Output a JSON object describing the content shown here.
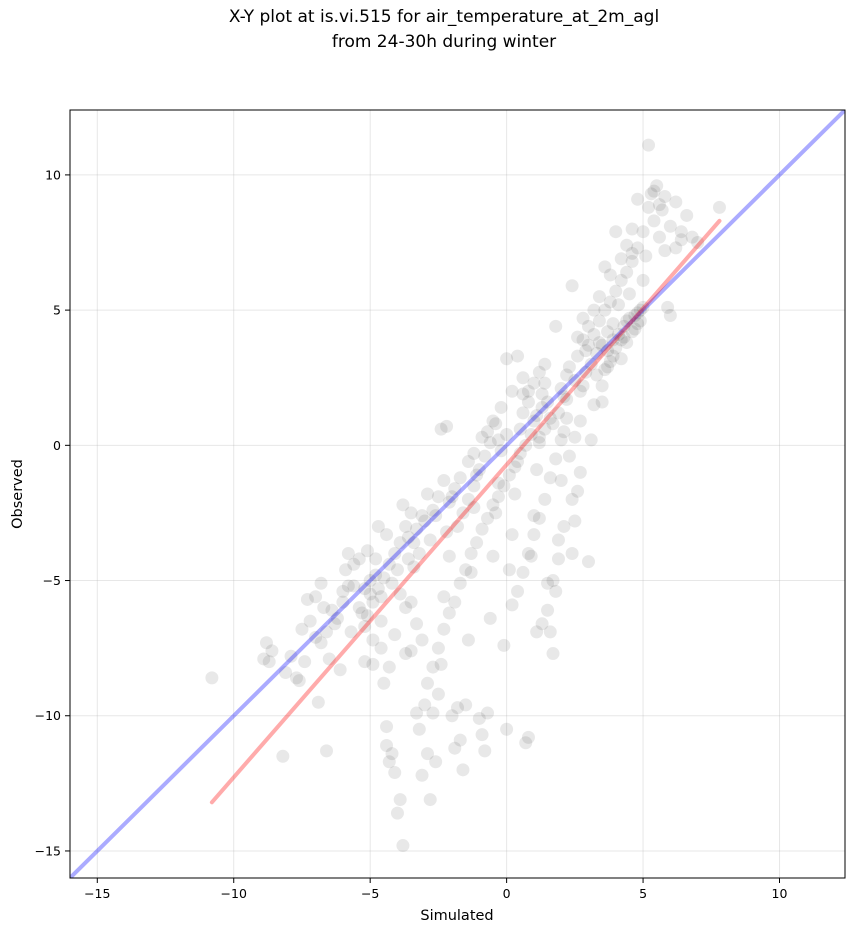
{
  "chart_data": {
    "type": "scatter",
    "title_line1": "X-Y plot at is.vi.515 for air_temperature_at_2m_agl",
    "title_line2": "from 24-30h during winter",
    "xlabel": "Simulated",
    "ylabel": "Observed",
    "xlim": [
      -16.0,
      12.4
    ],
    "ylim": [
      -16.0,
      12.4
    ],
    "xticks": [
      -15,
      -10,
      -5,
      0,
      5,
      10
    ],
    "yticks": [
      -15,
      -10,
      -5,
      0,
      5,
      10
    ],
    "xtick_labels": [
      "−15",
      "−10",
      "−5",
      "0",
      "5",
      "10"
    ],
    "ytick_labels": [
      "−15",
      "−10",
      "−5",
      "0",
      "5",
      "10"
    ],
    "grid": true,
    "point_color": "#000000",
    "point_alpha": 0.09,
    "reference_line": {
      "style": "1:1 identity line",
      "color": "#0000ff",
      "alpha": 0.33
    },
    "fit_line": {
      "color": "#ff0000",
      "alpha": 0.33,
      "x": [
        -10.8,
        7.8
      ],
      "y": [
        -13.2,
        8.3
      ]
    },
    "points": [
      [
        -10.8,
        -8.6
      ],
      [
        -8.9,
        -7.9
      ],
      [
        -8.7,
        -8.0
      ],
      [
        -8.8,
        -7.3
      ],
      [
        -8.6,
        -7.6
      ],
      [
        -8.2,
        -11.5
      ],
      [
        -7.9,
        -7.8
      ],
      [
        -7.6,
        -8.7
      ],
      [
        -7.4,
        -8.0
      ],
      [
        -7.2,
        -6.5
      ],
      [
        -7.0,
        -7.1
      ],
      [
        -6.9,
        -9.5
      ],
      [
        -6.8,
        -5.1
      ],
      [
        -6.6,
        -11.3
      ],
      [
        -6.7,
        -6.0
      ],
      [
        -6.5,
        -7.9
      ],
      [
        -6.3,
        -6.6
      ],
      [
        -6.1,
        -8.3
      ],
      [
        -6.0,
        -5.8
      ],
      [
        -5.9,
        -4.6
      ],
      [
        -5.8,
        -4.0
      ],
      [
        -5.7,
        -6.9
      ],
      [
        -5.6,
        -5.2
      ],
      [
        -5.4,
        -4.2
      ],
      [
        -5.3,
        -6.2
      ],
      [
        -5.2,
        -8.0
      ],
      [
        -5.1,
        -3.9
      ],
      [
        -5.0,
        -5.5
      ],
      [
        -4.9,
        -7.2
      ],
      [
        -4.8,
        -4.8
      ],
      [
        -4.7,
        -3.0
      ],
      [
        -4.6,
        -6.5
      ],
      [
        -4.5,
        -8.8
      ],
      [
        -4.4,
        -10.4
      ],
      [
        -4.4,
        -11.1
      ],
      [
        -4.3,
        -11.7
      ],
      [
        -4.2,
        -11.4
      ],
      [
        -4.1,
        -12.1
      ],
      [
        -4.0,
        -13.6
      ],
      [
        -3.9,
        -13.1
      ],
      [
        -3.8,
        -14.8
      ],
      [
        -3.7,
        -7.7
      ],
      [
        -3.6,
        -3.4
      ],
      [
        -3.5,
        -5.8
      ],
      [
        -3.4,
        -4.5
      ],
      [
        -3.3,
        -9.9
      ],
      [
        -3.2,
        -10.5
      ],
      [
        -3.1,
        -12.2
      ],
      [
        -3.0,
        -9.6
      ],
      [
        -2.9,
        -11.4
      ],
      [
        -2.8,
        -13.1
      ],
      [
        -2.7,
        -9.9
      ],
      [
        -2.6,
        -11.7
      ],
      [
        -2.5,
        -9.2
      ],
      [
        -2.4,
        -8.1
      ],
      [
        -2.3,
        -5.6
      ],
      [
        -2.2,
        -3.2
      ],
      [
        -2.1,
        -4.1
      ],
      [
        -2.0,
        -10.0
      ],
      [
        -1.9,
        -11.2
      ],
      [
        -1.8,
        -9.7
      ],
      [
        -1.7,
        -10.9
      ],
      [
        -1.6,
        -12.0
      ],
      [
        -1.5,
        -9.6
      ],
      [
        -1.4,
        -7.2
      ],
      [
        -1.3,
        -4.7
      ],
      [
        -1.2,
        -2.3
      ],
      [
        -1.1,
        -1.1
      ],
      [
        -1.0,
        -10.1
      ],
      [
        -0.9,
        -10.7
      ],
      [
        -0.8,
        -11.3
      ],
      [
        -0.7,
        -9.9
      ],
      [
        -0.6,
        -6.4
      ],
      [
        -0.5,
        -4.1
      ],
      [
        -0.4,
        -2.5
      ],
      [
        -0.3,
        -1.4
      ],
      [
        -0.2,
        -0.2
      ],
      [
        -0.1,
        -7.4
      ],
      [
        0.0,
        -10.5
      ],
      [
        0.1,
        -4.6
      ],
      [
        0.2,
        -3.3
      ],
      [
        0.3,
        -1.8
      ],
      [
        0.4,
        -0.6
      ],
      [
        0.5,
        0.6
      ],
      [
        0.6,
        1.2
      ],
      [
        0.7,
        -11.0
      ],
      [
        0.8,
        -10.8
      ],
      [
        0.9,
        -4.1
      ],
      [
        1.0,
        -2.6
      ],
      [
        1.1,
        -0.9
      ],
      [
        1.2,
        0.3
      ],
      [
        1.3,
        1.4
      ],
      [
        1.4,
        2.3
      ],
      [
        1.5,
        -5.1
      ],
      [
        1.6,
        -6.9
      ],
      [
        1.7,
        -7.7
      ],
      [
        1.8,
        -5.4
      ],
      [
        1.9,
        -3.5
      ],
      [
        2.0,
        -1.3
      ],
      [
        2.1,
        0.5
      ],
      [
        2.2,
        1.7
      ],
      [
        2.3,
        2.9
      ],
      [
        2.4,
        -4.0
      ],
      [
        2.5,
        -2.8
      ],
      [
        2.6,
        -1.7
      ],
      [
        2.7,
        0.9
      ],
      [
        2.8,
        2.2
      ],
      [
        2.9,
        3.5
      ],
      [
        3.0,
        -4.3
      ],
      [
        3.1,
        0.2
      ],
      [
        3.2,
        1.5
      ],
      [
        3.3,
        2.6
      ],
      [
        3.4,
        3.8
      ],
      [
        3.5,
        1.6
      ],
      [
        3.6,
        2.8
      ],
      [
        3.7,
        4.2
      ],
      [
        3.8,
        3.1
      ],
      [
        3.9,
        4.5
      ],
      [
        4.0,
        3.6
      ],
      [
        4.1,
        5.2
      ],
      [
        4.2,
        3.9
      ],
      [
        4.3,
        4.0
      ],
      [
        4.4,
        4.6
      ],
      [
        4.5,
        5.6
      ],
      [
        4.6,
        6.8
      ],
      [
        4.7,
        4.3
      ],
      [
        4.8,
        4.9
      ],
      [
        4.9,
        5.0
      ],
      [
        5.0,
        6.1
      ],
      [
        5.1,
        7.0
      ],
      [
        5.2,
        11.1
      ],
      [
        5.3,
        9.3
      ],
      [
        5.4,
        8.3
      ],
      [
        5.5,
        9.6
      ],
      [
        5.6,
        7.7
      ],
      [
        5.7,
        8.7
      ],
      [
        5.8,
        7.2
      ],
      [
        5.9,
        5.1
      ],
      [
        6.0,
        4.8
      ],
      [
        6.2,
        9.0
      ],
      [
        6.4,
        7.6
      ],
      [
        6.6,
        8.5
      ],
      [
        6.8,
        7.7
      ],
      [
        7.0,
        7.5
      ],
      [
        7.8,
        8.8
      ],
      [
        4.8,
        9.1
      ],
      [
        4.6,
        8.0
      ],
      [
        4.4,
        7.4
      ],
      [
        4.2,
        6.9
      ],
      [
        4.0,
        7.9
      ],
      [
        3.8,
        6.3
      ],
      [
        3.6,
        6.6
      ],
      [
        3.4,
        5.5
      ],
      [
        3.2,
        5.0
      ],
      [
        3.0,
        4.4
      ],
      [
        2.8,
        3.9
      ],
      [
        2.6,
        3.3
      ],
      [
        2.4,
        5.9
      ],
      [
        2.2,
        2.6
      ],
      [
        2.0,
        2.1
      ],
      [
        1.8,
        4.4
      ],
      [
        1.6,
        1.0
      ],
      [
        1.4,
        0.6
      ],
      [
        1.2,
        0.1
      ],
      [
        1.0,
        0.9
      ],
      [
        0.8,
        1.6
      ],
      [
        0.6,
        2.5
      ],
      [
        0.4,
        3.3
      ],
      [
        0.2,
        2.0
      ],
      [
        0.0,
        3.2
      ],
      [
        -0.2,
        1.4
      ],
      [
        -0.4,
        0.8
      ],
      [
        -0.6,
        0.1
      ],
      [
        -0.8,
        -0.4
      ],
      [
        -1.0,
        -0.9
      ],
      [
        -1.2,
        -1.5
      ],
      [
        -1.4,
        -2.0
      ],
      [
        -1.6,
        -2.5
      ],
      [
        -1.8,
        -3.0
      ],
      [
        -2.0,
        -1.9
      ],
      [
        -2.2,
        0.7
      ],
      [
        -2.4,
        0.6
      ],
      [
        -2.6,
        -2.6
      ],
      [
        -2.8,
        -3.5
      ],
      [
        -3.0,
        -2.8
      ],
      [
        -3.2,
        -4.0
      ],
      [
        -3.4,
        -3.6
      ],
      [
        -3.6,
        -4.2
      ],
      [
        -3.8,
        -2.2
      ],
      [
        -4.0,
        -4.6
      ],
      [
        -4.2,
        -5.1
      ],
      [
        -4.4,
        -3.3
      ],
      [
        -4.6,
        -5.6
      ],
      [
        -4.8,
        -4.2
      ],
      [
        -5.0,
        -5.0
      ],
      [
        -5.2,
        -5.3
      ],
      [
        -5.4,
        -6.0
      ],
      [
        -5.6,
        -4.4
      ],
      [
        -5.8,
        -5.2
      ],
      [
        -6.0,
        -5.4
      ],
      [
        -6.2,
        -6.4
      ],
      [
        -6.4,
        -6.1
      ],
      [
        -6.6,
        -6.9
      ],
      [
        -6.8,
        -7.3
      ],
      [
        -7.0,
        -5.6
      ],
      [
        -7.3,
        -5.7
      ],
      [
        -7.5,
        -6.8
      ],
      [
        -7.7,
        -8.6
      ],
      [
        -8.1,
        -8.4
      ],
      [
        2.2,
        1.0
      ],
      [
        2.1,
        1.8
      ],
      [
        1.9,
        1.2
      ],
      [
        1.7,
        0.8
      ],
      [
        1.5,
        1.6
      ],
      [
        1.3,
        1.9
      ],
      [
        1.1,
        1.1
      ],
      [
        2.5,
        2.4
      ],
      [
        2.7,
        2.0
      ],
      [
        2.9,
        2.7
      ],
      [
        3.1,
        3.0
      ],
      [
        3.3,
        3.4
      ],
      [
        3.5,
        3.7
      ],
      [
        3.7,
        3.5
      ],
      [
        3.9,
        3.9
      ],
      [
        4.1,
        4.1
      ],
      [
        4.3,
        4.4
      ],
      [
        4.5,
        4.7
      ],
      [
        4.7,
        4.8
      ],
      [
        4.9,
        4.6
      ],
      [
        5.0,
        5.1
      ],
      [
        0.9,
        0.4
      ],
      [
        0.7,
        0.0
      ],
      [
        0.5,
        -0.3
      ],
      [
        0.3,
        -0.8
      ],
      [
        0.1,
        -1.1
      ],
      [
        -0.1,
        -1.5
      ],
      [
        -0.3,
        -1.9
      ],
      [
        -0.5,
        -2.2
      ],
      [
        -0.7,
        -2.7
      ],
      [
        -0.9,
        -3.1
      ],
      [
        -1.1,
        -3.6
      ],
      [
        -1.3,
        -4.0
      ],
      [
        -1.5,
        -4.6
      ],
      [
        -1.7,
        -5.1
      ],
      [
        -1.9,
        -5.8
      ],
      [
        -2.1,
        -6.2
      ],
      [
        -2.3,
        -6.8
      ],
      [
        -2.5,
        -7.5
      ],
      [
        -2.7,
        -8.2
      ],
      [
        -2.9,
        -8.8
      ],
      [
        -3.1,
        -7.2
      ],
      [
        -3.3,
        -6.6
      ],
      [
        -3.5,
        -7.6
      ],
      [
        -3.7,
        -6.0
      ],
      [
        -3.9,
        -5.5
      ],
      [
        -4.1,
        -7.0
      ],
      [
        -4.3,
        -8.2
      ],
      [
        -4.6,
        -7.5
      ],
      [
        -4.9,
        -8.1
      ],
      [
        -5.2,
        -6.7
      ],
      [
        2.0,
        0.2
      ],
      [
        1.8,
        -0.5
      ],
      [
        1.6,
        -1.2
      ],
      [
        1.4,
        -2.0
      ],
      [
        1.2,
        -2.7
      ],
      [
        1.0,
        -3.3
      ],
      [
        0.8,
        -4.0
      ],
      [
        0.6,
        -4.7
      ],
      [
        0.4,
        -5.4
      ],
      [
        0.2,
        -5.9
      ],
      [
        2.3,
        -0.4
      ],
      [
        2.5,
        0.3
      ],
      [
        2.7,
        -1.0
      ],
      [
        2.4,
        -2.0
      ],
      [
        2.1,
        -3.0
      ],
      [
        1.9,
        -4.2
      ],
      [
        1.7,
        -5.0
      ],
      [
        1.5,
        -6.1
      ],
      [
        1.3,
        -6.6
      ],
      [
        1.1,
        -6.9
      ],
      [
        3.5,
        2.2
      ],
      [
        3.7,
        2.9
      ],
      [
        3.9,
        3.3
      ],
      [
        4.2,
        3.2
      ],
      [
        4.4,
        3.8
      ],
      [
        4.6,
        4.2
      ],
      [
        4.8,
        4.5
      ],
      [
        0.0,
        0.4
      ],
      [
        -0.3,
        0.2
      ],
      [
        -0.5,
        0.9
      ],
      [
        -0.7,
        0.5
      ],
      [
        -0.9,
        0.3
      ],
      [
        -1.2,
        -0.3
      ],
      [
        -1.4,
        -0.6
      ],
      [
        -1.7,
        -1.2
      ],
      [
        -1.9,
        -1.6
      ],
      [
        -2.1,
        -2.1
      ],
      [
        -2.3,
        -1.3
      ],
      [
        -2.5,
        -1.9
      ],
      [
        -2.7,
        -2.4
      ],
      [
        -2.9,
        -1.8
      ],
      [
        -3.1,
        -2.6
      ],
      [
        -3.3,
        -3.1
      ],
      [
        -3.5,
        -2.5
      ],
      [
        -3.7,
        -3.0
      ],
      [
        -3.9,
        -3.6
      ],
      [
        -4.1,
        -4.0
      ],
      [
        -4.3,
        -4.4
      ],
      [
        -4.5,
        -4.9
      ],
      [
        -4.7,
        -5.3
      ],
      [
        -4.9,
        -5.8
      ],
      [
        -5.1,
        -6.3
      ],
      [
        1.4,
        3.0
      ],
      [
        1.2,
        2.7
      ],
      [
        1.0,
        2.3
      ],
      [
        0.8,
        2.0
      ],
      [
        0.6,
        1.9
      ],
      [
        2.6,
        4.0
      ],
      [
        2.8,
        4.7
      ],
      [
        3.0,
        3.7
      ],
      [
        3.2,
        4.1
      ],
      [
        3.4,
        4.6
      ],
      [
        3.6,
        5.0
      ],
      [
        3.8,
        5.3
      ],
      [
        4.0,
        5.7
      ],
      [
        4.2,
        6.1
      ],
      [
        4.4,
        6.4
      ],
      [
        4.6,
        7.1
      ],
      [
        4.8,
        7.3
      ],
      [
        5.0,
        7.9
      ],
      [
        5.2,
        8.8
      ],
      [
        5.4,
        9.4
      ],
      [
        5.6,
        8.9
      ],
      [
        5.8,
        9.2
      ],
      [
        6.0,
        8.1
      ],
      [
        6.2,
        7.3
      ],
      [
        6.4,
        7.9
      ]
    ]
  }
}
